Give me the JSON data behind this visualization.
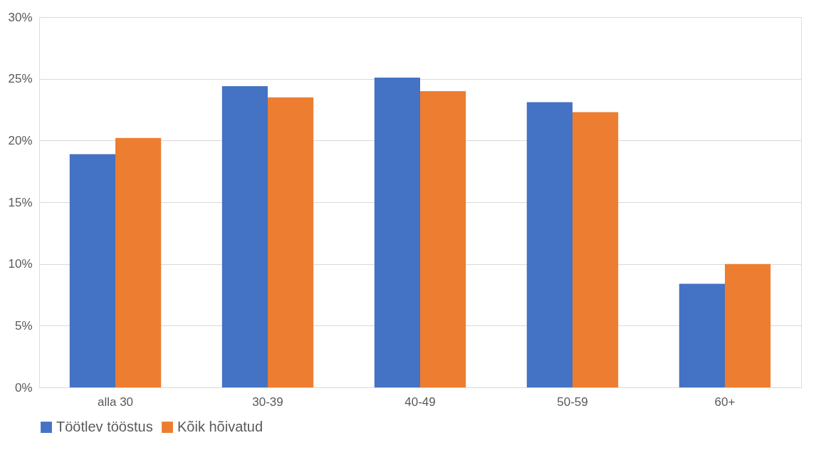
{
  "chart_data": {
    "type": "bar",
    "categories": [
      "alla 30",
      "30-39",
      "40-49",
      "50-59",
      "60+"
    ],
    "series": [
      {
        "name": "Töötlev tööstus",
        "color": "#4472c4",
        "values": [
          18.9,
          24.4,
          25.1,
          23.1,
          8.4
        ]
      },
      {
        "name": "Kõik hõivatud",
        "color": "#ed7d31",
        "values": [
          20.2,
          23.5,
          24.0,
          22.3,
          10.0
        ]
      }
    ],
    "ylim": [
      0,
      30
    ],
    "yticks": [
      {
        "value": 0,
        "label": "0%"
      },
      {
        "value": 5,
        "label": "5%"
      },
      {
        "value": 10,
        "label": "10%"
      },
      {
        "value": 15,
        "label": "15%"
      },
      {
        "value": 20,
        "label": "20%"
      },
      {
        "value": 25,
        "label": "25%"
      },
      {
        "value": 30,
        "label": "30%"
      }
    ],
    "grid": "y",
    "legend": "bottom"
  }
}
